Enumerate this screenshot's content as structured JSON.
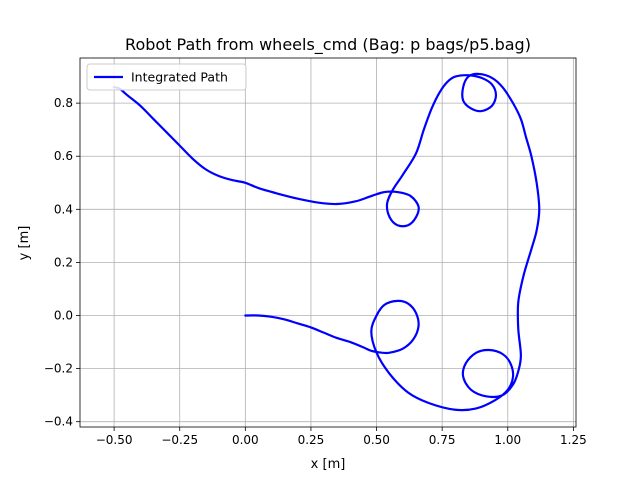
{
  "chart_data": {
    "type": "line",
    "title": "Robot Path from wheels_cmd (Bag: p bags/p5.bag)",
    "xlabel": "x [m]",
    "ylabel": "y [m]",
    "xlim": [
      -0.63,
      1.26
    ],
    "ylim": [
      -0.42,
      0.97
    ],
    "xticks": [
      -0.5,
      -0.25,
      0.0,
      0.25,
      0.5,
      0.75,
      1.0,
      1.25
    ],
    "xtick_labels": [
      "−0.50",
      "−0.25",
      "0.00",
      "0.25",
      "0.50",
      "0.75",
      "1.00",
      "1.25"
    ],
    "yticks": [
      -0.4,
      -0.2,
      0.0,
      0.2,
      0.4,
      0.6,
      0.8
    ],
    "ytick_labels": [
      "−0.4",
      "−0.2",
      "0.0",
      "0.2",
      "0.4",
      "0.6",
      "0.8"
    ],
    "grid": true,
    "legend": {
      "position": "top-left",
      "entries": [
        "Integrated Path"
      ]
    },
    "series": [
      {
        "name": "Integrated Path",
        "color": "#0000ff",
        "points": [
          [
            0.0,
            0.0
          ],
          [
            0.05,
            0.0
          ],
          [
            0.1,
            -0.005
          ],
          [
            0.15,
            -0.015
          ],
          [
            0.2,
            -0.03
          ],
          [
            0.25,
            -0.045
          ],
          [
            0.3,
            -0.065
          ],
          [
            0.35,
            -0.085
          ],
          [
            0.4,
            -0.1
          ],
          [
            0.45,
            -0.12
          ],
          [
            0.48,
            -0.133
          ],
          [
            0.52,
            -0.14
          ],
          [
            0.55,
            -0.14
          ],
          [
            0.6,
            -0.125
          ],
          [
            0.64,
            -0.09
          ],
          [
            0.66,
            -0.04
          ],
          [
            0.65,
            0.01
          ],
          [
            0.62,
            0.045
          ],
          [
            0.58,
            0.055
          ],
          [
            0.53,
            0.04
          ],
          [
            0.5,
            0.0
          ],
          [
            0.48,
            -0.06
          ],
          [
            0.5,
            -0.14
          ],
          [
            0.55,
            -0.22
          ],
          [
            0.62,
            -0.29
          ],
          [
            0.7,
            -0.33
          ],
          [
            0.8,
            -0.355
          ],
          [
            0.88,
            -0.35
          ],
          [
            0.95,
            -0.32
          ],
          [
            1.0,
            -0.28
          ],
          [
            1.02,
            -0.23
          ],
          [
            1.01,
            -0.18
          ],
          [
            0.98,
            -0.145
          ],
          [
            0.93,
            -0.13
          ],
          [
            0.88,
            -0.14
          ],
          [
            0.84,
            -0.18
          ],
          [
            0.83,
            -0.23
          ],
          [
            0.86,
            -0.28
          ],
          [
            0.92,
            -0.305
          ],
          [
            0.98,
            -0.3
          ],
          [
            1.02,
            -0.26
          ],
          [
            1.04,
            -0.21
          ],
          [
            1.05,
            -0.15
          ],
          [
            1.04,
            -0.05
          ],
          [
            1.04,
            0.05
          ],
          [
            1.06,
            0.15
          ],
          [
            1.09,
            0.25
          ],
          [
            1.11,
            0.32
          ],
          [
            1.12,
            0.4
          ],
          [
            1.11,
            0.5
          ],
          [
            1.09,
            0.6
          ],
          [
            1.07,
            0.67
          ],
          [
            1.05,
            0.74
          ],
          [
            1.02,
            0.8
          ],
          [
            0.98,
            0.86
          ],
          [
            0.94,
            0.895
          ],
          [
            0.89,
            0.91
          ],
          [
            0.85,
            0.9
          ],
          [
            0.83,
            0.86
          ],
          [
            0.83,
            0.81
          ],
          [
            0.86,
            0.78
          ],
          [
            0.9,
            0.77
          ],
          [
            0.94,
            0.79
          ],
          [
            0.955,
            0.83
          ],
          [
            0.94,
            0.87
          ],
          [
            0.9,
            0.895
          ],
          [
            0.85,
            0.905
          ],
          [
            0.8,
            0.9
          ],
          [
            0.77,
            0.88
          ],
          [
            0.74,
            0.84
          ],
          [
            0.71,
            0.78
          ],
          [
            0.68,
            0.7
          ],
          [
            0.65,
            0.61
          ],
          [
            0.6,
            0.53
          ],
          [
            0.56,
            0.47
          ],
          [
            0.54,
            0.42
          ],
          [
            0.55,
            0.37
          ],
          [
            0.58,
            0.34
          ],
          [
            0.62,
            0.34
          ],
          [
            0.65,
            0.37
          ],
          [
            0.66,
            0.41
          ],
          [
            0.63,
            0.45
          ],
          [
            0.58,
            0.465
          ],
          [
            0.53,
            0.465
          ],
          [
            0.48,
            0.45
          ],
          [
            0.42,
            0.43
          ],
          [
            0.35,
            0.42
          ],
          [
            0.28,
            0.425
          ],
          [
            0.2,
            0.44
          ],
          [
            0.12,
            0.46
          ],
          [
            0.05,
            0.48
          ],
          [
            0.0,
            0.5
          ],
          [
            -0.05,
            0.51
          ],
          [
            -0.1,
            0.525
          ],
          [
            -0.15,
            0.55
          ],
          [
            -0.2,
            0.59
          ],
          [
            -0.25,
            0.64
          ],
          [
            -0.3,
            0.69
          ],
          [
            -0.35,
            0.74
          ],
          [
            -0.4,
            0.79
          ],
          [
            -0.45,
            0.83
          ],
          [
            -0.48,
            0.855
          ],
          [
            -0.5,
            0.86
          ]
        ]
      }
    ]
  }
}
